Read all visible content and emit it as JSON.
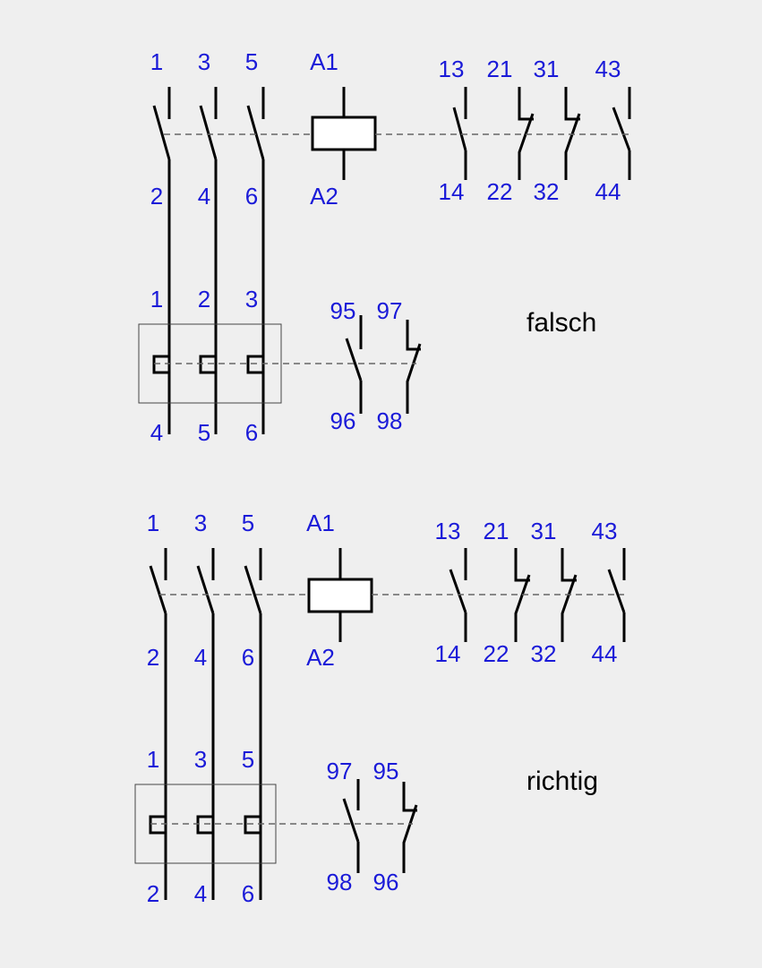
{
  "colors": {
    "label": "#1a1ad8",
    "background": "#efefef"
  },
  "diagrams": [
    {
      "verdict": "falsch",
      "main_top": [
        "1",
        "3",
        "5"
      ],
      "main_bottom": [
        "2",
        "4",
        "6"
      ],
      "coil_top": "A1",
      "coil_bottom": "A2",
      "aux_top": [
        "13",
        "21",
        "31",
        "43"
      ],
      "aux_bottom": [
        "14",
        "22",
        "32",
        "44"
      ],
      "relay_top": [
        "1",
        "2",
        "3"
      ],
      "relay_bottom": [
        "4",
        "5",
        "6"
      ],
      "relay_aux_top": [
        "95",
        "97"
      ],
      "relay_aux_bottom": [
        "96",
        "98"
      ]
    },
    {
      "verdict": "richtig",
      "main_top": [
        "1",
        "3",
        "5"
      ],
      "main_bottom": [
        "2",
        "4",
        "6"
      ],
      "coil_top": "A1",
      "coil_bottom": "A2",
      "aux_top": [
        "13",
        "21",
        "31",
        "43"
      ],
      "aux_bottom": [
        "14",
        "22",
        "32",
        "44"
      ],
      "relay_top": [
        "1",
        "3",
        "5"
      ],
      "relay_bottom": [
        "2",
        "4",
        "6"
      ],
      "relay_aux_top": [
        "97",
        "95"
      ],
      "relay_aux_bottom": [
        "98",
        "96"
      ]
    }
  ]
}
